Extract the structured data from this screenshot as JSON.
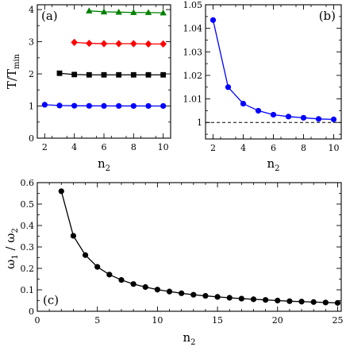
{
  "chart_data": [
    {
      "panel": "(a)",
      "type": "scatter",
      "xlabel": "n",
      "xlabel_sub": "2",
      "ylabel": "T/T",
      "ylabel_sub": "min",
      "xlim": [
        1.5,
        10.5
      ],
      "ylim": [
        0,
        4.15
      ],
      "xticks": [
        2,
        4,
        6,
        8,
        10
      ],
      "yticks": [
        0,
        1,
        2,
        3,
        4
      ],
      "series": [
        {
          "color": "#0000ff",
          "marker": "circle",
          "x": [
            2,
            3,
            4,
            5,
            6,
            7,
            8,
            9,
            10
          ],
          "values": [
            1.04,
            1.015,
            1.008,
            1.005,
            1.003,
            1.002,
            1.002,
            1.001,
            1.001
          ]
        },
        {
          "color": "#000000",
          "marker": "square",
          "x": [
            3,
            4,
            5,
            6,
            7,
            8,
            9,
            10
          ],
          "values": [
            2.02,
            1.98,
            1.97,
            1.97,
            1.97,
            1.97,
            1.97,
            1.97
          ]
        },
        {
          "color": "#ff0000",
          "marker": "diamond",
          "x": [
            4,
            5,
            6,
            7,
            8,
            9,
            10
          ],
          "values": [
            2.98,
            2.95,
            2.94,
            2.94,
            2.94,
            2.93,
            2.93
          ]
        },
        {
          "color": "#008000",
          "marker": "triangle",
          "x": [
            5,
            6,
            7,
            8,
            9,
            10
          ],
          "values": [
            3.96,
            3.93,
            3.92,
            3.91,
            3.91,
            3.9
          ]
        }
      ]
    },
    {
      "panel": "(b)",
      "type": "line",
      "xlabel": "n",
      "xlabel_sub": "2",
      "xlim": [
        1.5,
        10.5
      ],
      "ylim": [
        0.993,
        1.05
      ],
      "xticks": [
        2,
        4,
        6,
        8,
        10
      ],
      "yticks": [
        1,
        1.01,
        1.02,
        1.03,
        1.04,
        1.05
      ],
      "ytick_labels": [
        "1",
        "1.01",
        "1.02",
        "1.03",
        "1.04",
        "1.05"
      ],
      "reference_line": 1,
      "series": [
        {
          "color": "#0000ff",
          "marker": "circle",
          "x": [
            2,
            3,
            4,
            5,
            6,
            7,
            8,
            9,
            10
          ],
          "values": [
            1.0435,
            1.015,
            1.008,
            1.005,
            1.0033,
            1.0025,
            1.002,
            1.0015,
            1.0013
          ]
        }
      ]
    },
    {
      "panel": "(c)",
      "type": "line",
      "xlabel": "n",
      "xlabel_sub": "2",
      "ylabel": "ω",
      "ylabel_sub1": "1",
      "ylabel_mid": " / ω",
      "ylabel_sub2": "2",
      "xlim": [
        0,
        25.3
      ],
      "ylim": [
        0,
        0.6
      ],
      "xticks": [
        0,
        5,
        10,
        15,
        20,
        25
      ],
      "yticks": [
        0,
        0.1,
        0.2,
        0.3,
        0.4,
        0.5,
        0.6
      ],
      "series": [
        {
          "color": "#000000",
          "marker": "circle",
          "x": [
            2,
            3,
            4,
            5,
            6,
            7,
            8,
            9,
            10,
            11,
            12,
            13,
            14,
            15,
            16,
            17,
            18,
            19,
            20,
            21,
            22,
            23,
            24,
            25
          ],
          "values": [
            0.56,
            0.352,
            0.262,
            0.207,
            0.171,
            0.146,
            0.127,
            0.113,
            0.101,
            0.092,
            0.084,
            0.077,
            0.072,
            0.067,
            0.063,
            0.059,
            0.056,
            0.053,
            0.05,
            0.047,
            0.045,
            0.043,
            0.041,
            0.039
          ]
        }
      ]
    }
  ]
}
